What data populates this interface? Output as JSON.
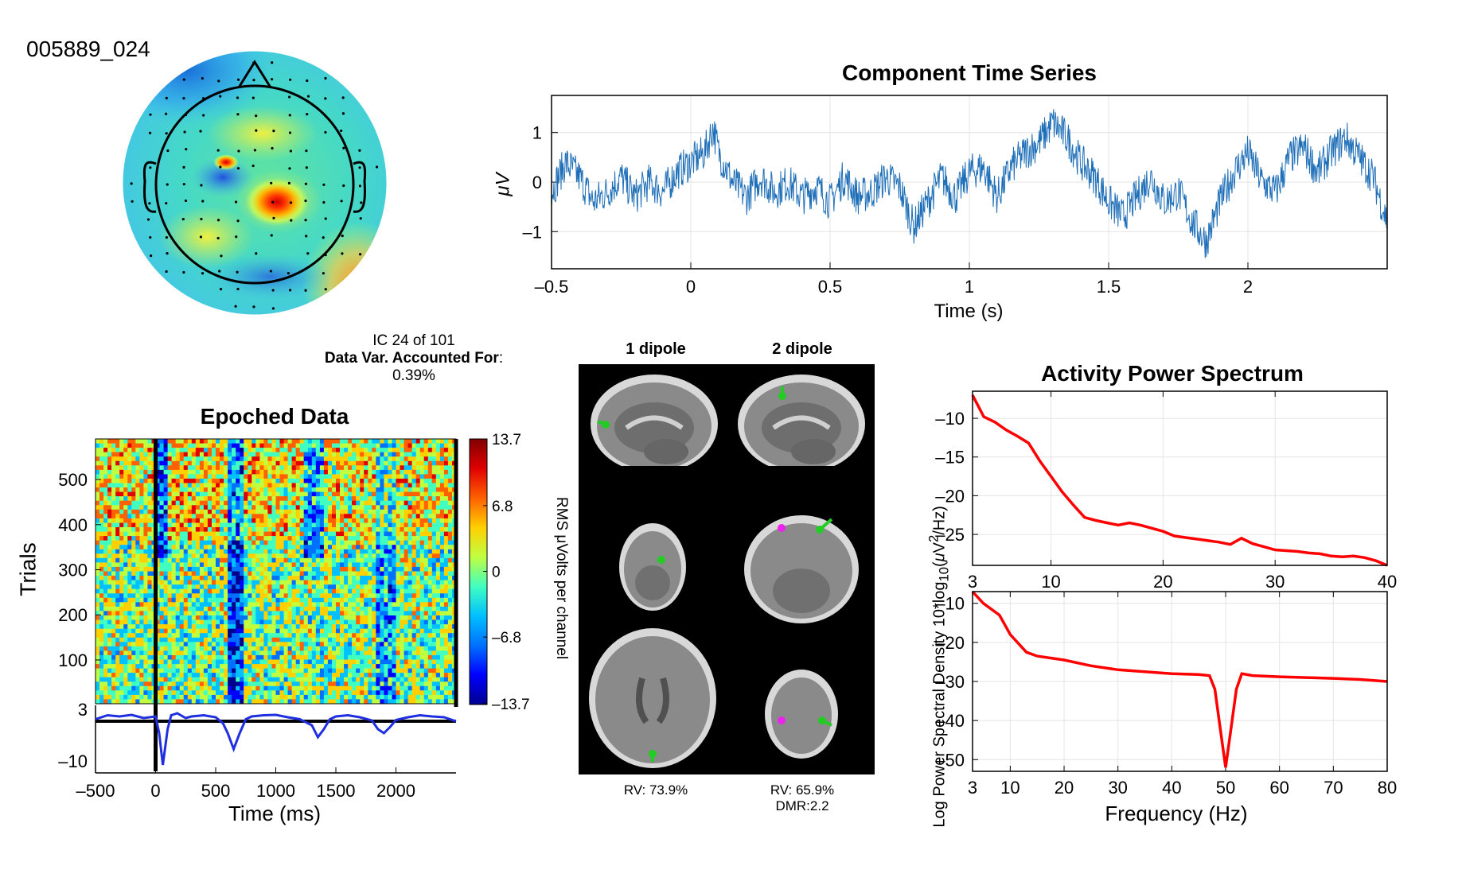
{
  "component_id": "005889_024",
  "info": {
    "ic_line": "IC 24 of 101",
    "var_label": "Data Var. Accounted For",
    "var_colon": ":",
    "var_value": "0.39%"
  },
  "colors": {
    "trace": "#1f6fb8",
    "spectrum": "#ff0000",
    "erp": "#1f2fe0",
    "dipole_green": "#22cc22",
    "dipole_magenta": "#ee22ee"
  },
  "chart_data": [
    {
      "id": "time_series",
      "type": "line",
      "title": "Component Time Series",
      "xlabel": "Time (s)",
      "ylabel": "μV",
      "xlim": [
        -0.5,
        2.5
      ],
      "ylim": [
        -1.75,
        1.75
      ],
      "xticks": [
        -0.5,
        0,
        0.5,
        1,
        1.5,
        2
      ],
      "xtick_labels": [
        "–0.5",
        "0",
        "0.5",
        "1",
        "1.5",
        "2"
      ],
      "yticks": [
        1,
        0,
        -1
      ],
      "ytick_labels": [
        "1",
        "0",
        "–1"
      ],
      "grid": true,
      "series": [
        {
          "x": [
            -0.5,
            -0.45,
            -0.4,
            -0.35,
            -0.3,
            -0.25,
            -0.2,
            -0.15,
            -0.1,
            -0.05,
            0,
            0.05,
            0.08,
            0.1,
            0.15,
            0.2,
            0.25,
            0.3,
            0.35,
            0.4,
            0.45,
            0.5,
            0.55,
            0.6,
            0.65,
            0.7,
            0.75,
            0.8,
            0.85,
            0.9,
            0.95,
            1,
            1.05,
            1.1,
            1.15,
            1.2,
            1.25,
            1.3,
            1.35,
            1.4,
            1.45,
            1.5,
            1.55,
            1.6,
            1.65,
            1.7,
            1.75,
            1.8,
            1.85,
            1.9,
            1.95,
            2,
            2.05,
            2.1,
            2.15,
            2.2,
            2.25,
            2.3,
            2.35,
            2.4,
            2.45,
            2.5
          ],
          "y": [
            -0.2,
            0.4,
            0.1,
            -0.4,
            -0.2,
            0.1,
            -0.3,
            0.0,
            -0.2,
            0.2,
            0.4,
            0.6,
            1.1,
            0.6,
            0.0,
            -0.3,
            0.1,
            -0.2,
            0.0,
            -0.3,
            -0.1,
            -0.4,
            0.1,
            -0.3,
            -0.2,
            0.1,
            -0.1,
            -0.9,
            -0.4,
            0.1,
            -0.3,
            0.2,
            0.3,
            -0.3,
            0.3,
            0.6,
            0.8,
            1.2,
            0.9,
            0.4,
            0.1,
            -0.4,
            -0.7,
            -0.3,
            0.1,
            -0.4,
            -0.2,
            -0.8,
            -1.2,
            -0.4,
            0.2,
            0.6,
            0.0,
            -0.2,
            0.5,
            0.7,
            0.2,
            0.6,
            0.9,
            0.5,
            0.1,
            -0.8
          ]
        }
      ]
    },
    {
      "id": "epoched",
      "type": "heatmap",
      "title": "Epoched Data",
      "ylabel": "Trials",
      "yticks": [
        100,
        200,
        300,
        400,
        500
      ],
      "ylim": [
        3,
        590
      ],
      "xlim": [
        -500,
        2500
      ],
      "colorbar_label": "RMS μVolts per channel",
      "colorbar_ticks": [
        "13.7",
        "6.8",
        "0",
        "–6.8",
        "–13.7"
      ],
      "colorbar_values": [
        13.7,
        6.8,
        0,
        -6.8,
        -13.7
      ]
    },
    {
      "id": "erp",
      "type": "line",
      "xlabel": "Time (ms)",
      "xticks": [
        -500,
        0,
        500,
        1000,
        1500,
        2000
      ],
      "xtick_labels": [
        "–500",
        "0",
        "500",
        "1000",
        "1500",
        "2000"
      ],
      "yticks": [
        3,
        -10
      ],
      "ytick_labels": [
        "3",
        "–10"
      ],
      "ylim": [
        -13,
        4
      ],
      "xlim": [
        -500,
        2500
      ],
      "series": [
        {
          "x": [
            -500,
            -400,
            -300,
            -200,
            -100,
            0,
            30,
            60,
            100,
            130,
            180,
            250,
            300,
            400,
            500,
            560,
            600,
            650,
            700,
            750,
            800,
            900,
            1000,
            1100,
            1200,
            1300,
            1350,
            1400,
            1450,
            1500,
            1600,
            1700,
            1800,
            1850,
            1900,
            1950,
            2000,
            2100,
            2200,
            2300,
            2400,
            2500
          ],
          "y": [
            0.5,
            1.5,
            1.2,
            1.6,
            0.8,
            1.2,
            -3,
            -11,
            -2,
            1.5,
            2,
            0.8,
            1.2,
            1.5,
            1.0,
            -0.5,
            -3,
            -7,
            -3,
            0.5,
            1.2,
            1.5,
            1.6,
            1.0,
            0.5,
            -1,
            -4,
            -2,
            0.5,
            1.2,
            1.5,
            1.0,
            0.2,
            -2,
            -3,
            -1.5,
            0.3,
            1.0,
            1.5,
            1.2,
            1.0,
            0
          ]
        }
      ]
    },
    {
      "id": "spectrum_top",
      "type": "line",
      "title": "Activity Power Spectrum",
      "xlim": [
        3,
        40
      ],
      "ylim": [
        -29,
        -6.5
      ],
      "xticks": [
        3,
        10,
        20,
        30,
        40
      ],
      "yticks": [
        -10,
        -15,
        -20,
        -25
      ],
      "ytick_labels": [
        "–10",
        "–15",
        "–20",
        "–25"
      ],
      "series": [
        {
          "x": [
            3,
            4,
            5,
            6,
            7,
            8,
            9,
            10,
            11,
            12,
            13,
            14,
            15,
            16,
            17,
            18,
            19,
            20,
            21,
            22,
            23,
            24,
            25,
            26,
            27,
            28,
            29,
            30,
            31,
            32,
            33,
            34,
            35,
            36,
            37,
            38,
            39,
            40
          ],
          "y": [
            -7,
            -9.8,
            -10.5,
            -11.5,
            -12.3,
            -13.2,
            -15.5,
            -17.5,
            -19.5,
            -21.2,
            -22.8,
            -23.2,
            -23.5,
            -23.8,
            -23.5,
            -23.8,
            -24.2,
            -24.6,
            -25.2,
            -25.4,
            -25.6,
            -25.8,
            -26.0,
            -26.3,
            -25.5,
            -26.2,
            -26.6,
            -27.0,
            -27.1,
            -27.2,
            -27.4,
            -27.5,
            -27.8,
            -27.9,
            -27.8,
            -28.0,
            -28.4,
            -29.0
          ]
        }
      ]
    },
    {
      "id": "spectrum_bottom",
      "type": "line",
      "xlabel": "Frequency (Hz)",
      "ylabel": "Log Power Spectral Density 10*log10(μV²/Hz)",
      "xlim": [
        3,
        80
      ],
      "ylim": [
        -53,
        -7
      ],
      "xticks": [
        3,
        10,
        20,
        30,
        40,
        50,
        60,
        70,
        80
      ],
      "yticks": [
        -10,
        -20,
        -30,
        -40,
        -50
      ],
      "ytick_labels": [
        "–10",
        "–20",
        "–30",
        "–40",
        "–50"
      ],
      "series": [
        {
          "x": [
            3,
            5,
            8,
            10,
            13,
            15,
            20,
            25,
            30,
            35,
            40,
            45,
            47,
            48,
            49,
            50,
            51,
            52,
            53,
            55,
            60,
            65,
            70,
            75,
            80
          ],
          "y": [
            -7,
            -10,
            -13,
            -18,
            -22.5,
            -23.5,
            -24.5,
            -26,
            -27,
            -27.5,
            -28,
            -28.2,
            -28.5,
            -32,
            -42,
            -52,
            -42,
            -32,
            -28,
            -28.5,
            -28.8,
            -29,
            -29.2,
            -29.5,
            -30
          ]
        }
      ]
    }
  ],
  "dipoles": {
    "col1_title": "1 dipole",
    "col2_title": "2 dipole",
    "rv1": "RV: 73.9%",
    "rv2": "RV: 65.9%",
    "dmr2": "DMR:2.2"
  }
}
